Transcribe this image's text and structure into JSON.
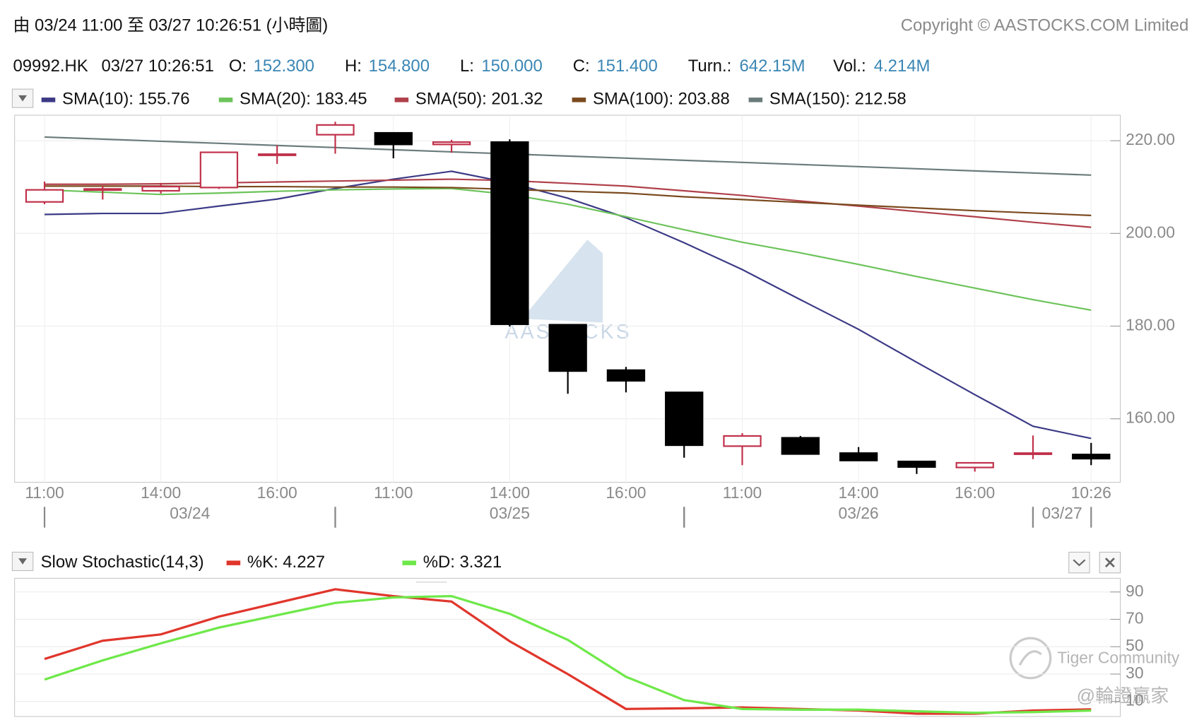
{
  "header": {
    "range_text": "由  03/24 11:00 至  03/27 10:26:51 (小時圖)",
    "copyright": "Copyright © AASTOCKS.COM Limited"
  },
  "info": {
    "symbol": "09992.HK",
    "time": "03/27 10:26:51",
    "fields": [
      {
        "label": "O:",
        "value": "152.300"
      },
      {
        "label": "H:",
        "value": "154.800"
      },
      {
        "label": "L:",
        "value": "150.000"
      },
      {
        "label": "C:",
        "value": "151.400"
      },
      {
        "label": "Turn.:",
        "value": "642.15M"
      },
      {
        "label": "Vol.:",
        "value": "4.214M"
      }
    ]
  },
  "watermarks": [
    "AASTOCKS",
    "Tiger Community",
    "@輪證贏家"
  ],
  "chart_data": [
    {
      "type": "candlestick",
      "categories": [
        "11:00",
        null,
        "14:00",
        null,
        "16:00",
        null,
        "11:00",
        null,
        "14:00",
        null,
        "16:00",
        null,
        "11:00",
        null,
        "14:00",
        null,
        "16:00",
        null,
        "10:26"
      ],
      "date_groups": [
        {
          "label": "03/24",
          "from": 0,
          "to": 5
        },
        {
          "label": "03/25",
          "from": 5,
          "to": 11
        },
        {
          "label": "03/26",
          "from": 11,
          "to": 17
        },
        {
          "label": "03/27",
          "from": 17,
          "to": 18
        }
      ],
      "open": [
        206.8,
        209.4,
        209.2,
        209.9,
        217.0,
        221.3,
        221.7,
        219.2,
        219.7,
        180.3,
        170.5,
        165.7,
        154.1,
        155.9,
        152.6,
        150.8,
        149.5,
        152.5,
        152.3
      ],
      "high": [
        211.2,
        210.2,
        210.9,
        217.5,
        219.0,
        224.1,
        221.8,
        220.2,
        220.3,
        180.3,
        171.2,
        165.7,
        156.9,
        156.3,
        153.9,
        150.8,
        150.6,
        156.4,
        154.8
      ],
      "low": [
        206.3,
        207.3,
        208.6,
        209.6,
        215.0,
        217.2,
        216.2,
        217.4,
        179.9,
        165.4,
        165.7,
        151.6,
        150.0,
        152.4,
        151.0,
        148.1,
        148.6,
        151.3,
        150.0
      ],
      "close": [
        209.4,
        209.6,
        210.1,
        217.5,
        217.1,
        223.4,
        219.2,
        219.7,
        180.4,
        170.3,
        168.2,
        154.3,
        156.3,
        152.4,
        151.0,
        149.6,
        150.5,
        152.6,
        151.4
      ],
      "up_color": "#c0304a",
      "down_color": "#000000",
      "series": [
        {
          "name": "SMA(10):",
          "color": "#3c3a86",
          "values": [
            204.1,
            204.3,
            204.3,
            205.9,
            207.4,
            209.7,
            211.7,
            213.4,
            210.9,
            207.6,
            203.4,
            198.0,
            192.2,
            185.7,
            179.3,
            172.2,
            165.2,
            158.4,
            155.76
          ]
        },
        {
          "name": "SMA(20):",
          "color": "#6cc35a",
          "values": [
            209.4,
            208.9,
            208.4,
            208.7,
            209.1,
            209.4,
            209.6,
            209.7,
            208.4,
            206.3,
            203.6,
            200.8,
            198.1,
            195.8,
            193.3,
            190.7,
            188.2,
            185.7,
            183.45
          ]
        },
        {
          "name": "SMA(50):",
          "color": "#b0404a",
          "values": [
            210.6,
            210.6,
            210.7,
            210.9,
            211.1,
            211.3,
            211.5,
            211.7,
            211.4,
            210.8,
            210.2,
            209.2,
            208.2,
            207.0,
            205.9,
            204.7,
            203.6,
            202.4,
            201.32
          ]
        },
        {
          "name": "SMA(100):",
          "color": "#7a4a1e",
          "values": [
            210.2,
            210.2,
            210.2,
            210.1,
            210.1,
            210.0,
            210.0,
            209.9,
            209.5,
            209.1,
            208.7,
            207.9,
            207.3,
            206.7,
            206.1,
            205.5,
            204.9,
            204.4,
            203.88
          ]
        },
        {
          "name": "SMA(150):",
          "color": "#6b7b7b",
          "values": [
            220.8,
            220.34,
            219.89,
            219.43,
            218.97,
            218.52,
            218.06,
            217.6,
            217.15,
            216.69,
            216.23,
            215.78,
            215.32,
            214.86,
            214.41,
            213.95,
            213.49,
            213.04,
            212.58
          ]
        }
      ],
      "ylim": [
        146.3,
        225.5
      ],
      "yticks": [
        {
          "value": 220,
          "label": "220.00"
        },
        {
          "value": 200,
          "label": "200.00"
        },
        {
          "value": 180,
          "label": "180.00"
        },
        {
          "value": 160,
          "label": "160.00"
        }
      ],
      "grid": true
    },
    {
      "type": "line",
      "title": "Slow Stochastic(14,3)",
      "series": [
        {
          "name": "%K:",
          "color": "#e0362c",
          "values": [
            41,
            54.4,
            59,
            72,
            82,
            92,
            87,
            83,
            54,
            30,
            4.5,
            5,
            5.6,
            4.5,
            3.4,
            1.1,
            1.1,
            3.4,
            4.227
          ]
        },
        {
          "name": "%D:",
          "color": "#6fe84a",
          "values": [
            26,
            40,
            52.5,
            64,
            73,
            82,
            86,
            87,
            74,
            55,
            28,
            11,
            4.5,
            4,
            4,
            2.8,
            1.7,
            2.2,
            3.321
          ]
        }
      ],
      "ylim": [
        -1,
        100
      ],
      "yticks": [
        90,
        70,
        50,
        30,
        10
      ],
      "grid": true
    }
  ]
}
